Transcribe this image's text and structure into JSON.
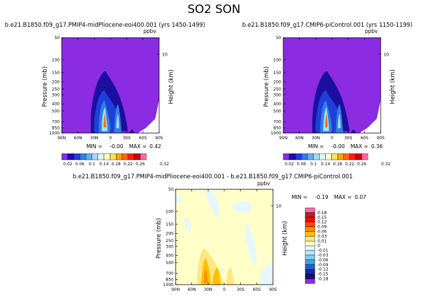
{
  "title": "SO2 SON",
  "chart_data": [
    {
      "type": "heatmap",
      "title": "b.e21.B1850.f09_g17.PMIP4-midPliocene-eoi400.001 (yrs 1450-1499)",
      "units": "ppbv",
      "xlabel": "",
      "ylabel": "Pressure (mb)",
      "y2label": "Height (km)",
      "y2ticks": [
        "10"
      ],
      "xticks": [
        "90N",
        "60N",
        "30N",
        "0",
        "30S",
        "60S",
        "90S"
      ],
      "yticks": [
        "1000",
        "850",
        "700",
        "500",
        "400",
        "300",
        "250",
        "200",
        "150",
        "100",
        "50"
      ],
      "stats": {
        "min_label": "MIN =",
        "min": "-0.00",
        "max_label": "MAX =",
        "max": "0.42"
      },
      "colorbar_labels": [
        "0.02",
        "0.06",
        "0.1",
        "0.14",
        "0.18",
        "0.22",
        "0.26",
        "0.32"
      ],
      "colorbar_colors": [
        "#8b2be2",
        "#1a0fa0",
        "#1e40d8",
        "#2f7fe6",
        "#5fb0f2",
        "#a6dcf7",
        "#dff4f9",
        "#ffffc2",
        "#ffe066",
        "#ffa500",
        "#ff6a00",
        "#ff2000",
        "#cc0000",
        "#ff66aa"
      ]
    },
    {
      "type": "heatmap",
      "title": "b.e21.B1850.f09_g17.CMIP6-piControl.001 (yrs 1150-1199)",
      "units": "ppbv",
      "xlabel": "",
      "ylabel": "Pressure (mb)",
      "y2label": "Height (km)",
      "y2ticks": [
        "10"
      ],
      "xticks": [
        "90N",
        "60N",
        "30N",
        "0",
        "30S",
        "60S",
        "90S"
      ],
      "yticks": [
        "1000",
        "850",
        "700",
        "500",
        "400",
        "300",
        "250",
        "200",
        "150",
        "100",
        "50"
      ],
      "stats": {
        "min_label": "MIN =",
        "min": "-0.00",
        "max_label": "MAX =",
        "max": "0.36"
      },
      "colorbar_labels": [
        "0.02",
        "0.06",
        "0.1",
        "0.14",
        "0.18",
        "0.22",
        "0.26",
        "0.32"
      ],
      "colorbar_colors": [
        "#8b2be2",
        "#1a0fa0",
        "#1e40d8",
        "#2f7fe6",
        "#5fb0f2",
        "#a6dcf7",
        "#dff4f9",
        "#ffffc2",
        "#ffe066",
        "#ffa500",
        "#ff6a00",
        "#ff2000",
        "#cc0000",
        "#ff66aa"
      ]
    },
    {
      "type": "heatmap",
      "title": "b.e21.B1850.f09_g17.PMIP4-midPliocene-eoi400.001 - b.e21.B1850.f09_g17.CMIP6-piControl.001",
      "units": "ppbv",
      "xlabel": "",
      "ylabel": "Pressure (mb)",
      "y2label": "Height (km)",
      "y2ticks": [
        "10"
      ],
      "xticks": [
        "90N",
        "60N",
        "30N",
        "0",
        "30S",
        "60S",
        "90S"
      ],
      "yticks": [
        "1000",
        "850",
        "700",
        "500",
        "400",
        "300",
        "250",
        "200",
        "150",
        "100",
        "50"
      ],
      "stats": {
        "min_label": "MIN =",
        "min": "-0.19",
        "max_label": "MAX =",
        "max": "0.07"
      },
      "colorbar_labels": [
        "0.18",
        "0.15",
        "0.12",
        "0.09",
        "0.06",
        "0.03",
        "0.01",
        "0",
        "-0.01",
        "-0.03",
        "-0.06",
        "-0.09",
        "-0.12",
        "-0.15",
        "-0.18"
      ],
      "colorbar_colors": [
        "#ff66aa",
        "#b22222",
        "#ff0000",
        "#ff4500",
        "#ff8c00",
        "#ffc000",
        "#ffe880",
        "#ffffc8",
        "#e6f7ff",
        "#b8e6f5",
        "#7fcbef",
        "#3fa0e6",
        "#2060d0",
        "#1a2aa0",
        "#151070",
        "#8b2be2"
      ]
    }
  ]
}
